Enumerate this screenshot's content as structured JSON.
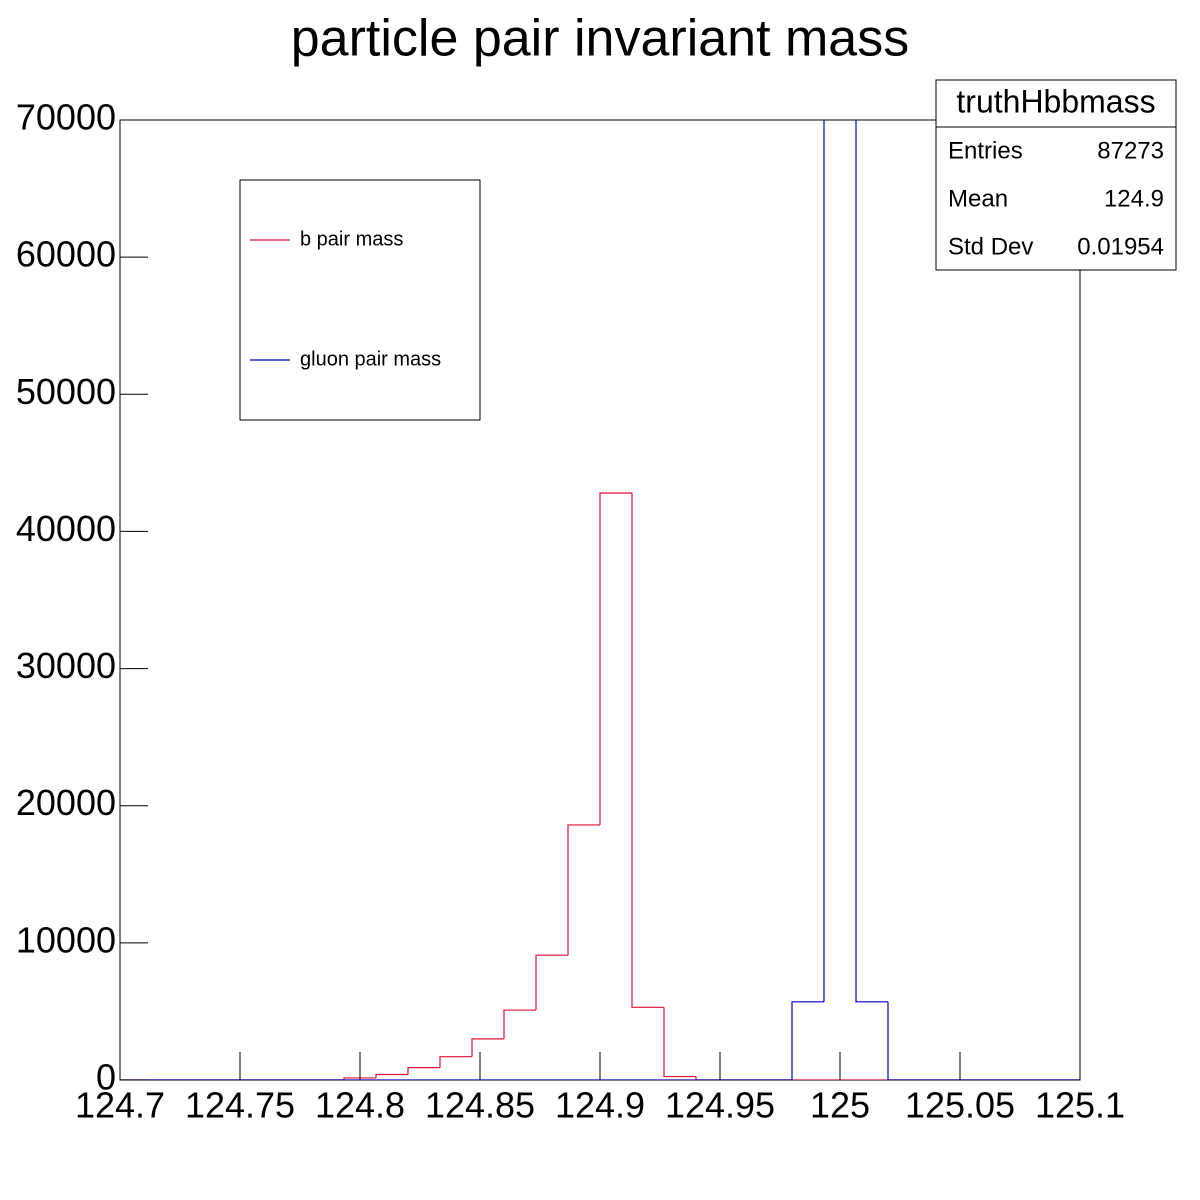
{
  "chart_data": {
    "type": "histogram",
    "title": "particle pair invariant mass",
    "bins": [
      124.7,
      124.71333,
      124.72667,
      124.74,
      124.75333,
      124.76667,
      124.78,
      124.79333,
      124.80667,
      124.82,
      124.83333,
      124.84667,
      124.86,
      124.87333,
      124.88667,
      124.9,
      124.91333,
      124.92667,
      124.94,
      124.95333,
      124.96667,
      124.98,
      124.99333,
      125.00667,
      125.02,
      125.03333,
      125.04667,
      125.06,
      125.07333,
      125.08667,
      125.1
    ],
    "series": [
      {
        "name": "b pair mass",
        "color": "#e0103c",
        "values": [
          0,
          0,
          0,
          0,
          0,
          0,
          0,
          150,
          400,
          900,
          1700,
          3000,
          5100,
          9100,
          18600,
          42800,
          5300,
          250,
          0,
          0,
          0,
          0,
          0,
          0,
          0,
          0,
          0,
          0,
          0,
          0
        ]
      },
      {
        "name": "gluon pair mass",
        "color": "#0000cc",
        "values": [
          0,
          0,
          0,
          0,
          0,
          0,
          0,
          0,
          0,
          0,
          0,
          0,
          0,
          0,
          0,
          0,
          0,
          0,
          0,
          0,
          0,
          5700,
          75000,
          5700,
          0,
          0,
          0,
          0,
          0,
          0
        ]
      }
    ],
    "xlim": [
      124.7,
      125.1
    ],
    "xticks": [
      124.7,
      124.75,
      124.8,
      124.85,
      124.9,
      124.95,
      125,
      125.05,
      125.1
    ],
    "ylim": [
      0,
      70000
    ],
    "yticks": [
      0,
      10000,
      20000,
      30000,
      40000,
      50000,
      60000,
      70000
    ],
    "legend": "top-left",
    "stats": {
      "name": "truthHbbmass",
      "rows": [
        [
          "Entries",
          "87273"
        ],
        [
          "Mean",
          "124.9"
        ],
        [
          "Std Dev",
          "0.01954"
        ]
      ]
    }
  }
}
